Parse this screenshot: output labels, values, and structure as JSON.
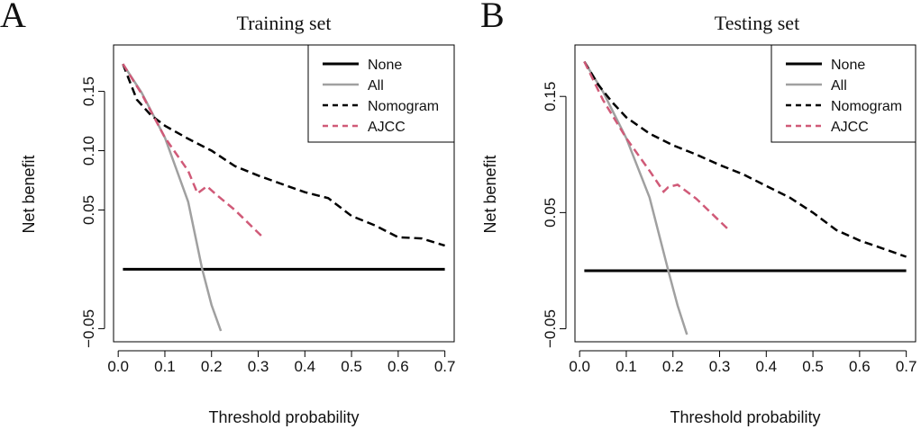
{
  "figure": {
    "colors": {
      "None": "#000000",
      "All": "#a0a0a0",
      "Nomogram": "#000000",
      "AJCC": "#d05a78"
    }
  },
  "chart_data": [
    {
      "type": "line",
      "panel_label": "A",
      "title": "Training set",
      "xlabel": "Threshold probability",
      "ylabel": "Net benefit",
      "xlim": [
        -0.01,
        0.72
      ],
      "ylim": [
        -0.055,
        0.18
      ],
      "xticks": [
        0.0,
        0.1,
        0.2,
        0.3,
        0.4,
        0.5,
        0.6,
        0.7
      ],
      "xtick_labels": [
        "0.0",
        "0.1",
        "0.2",
        "0.3",
        "0.4",
        "0.5",
        "0.6",
        "0.7"
      ],
      "yticks": [
        -0.05,
        0.05,
        0.1,
        0.15
      ],
      "ytick_labels": [
        "−0.05",
        "0.05",
        "0.10",
        "0.15"
      ],
      "grid": false,
      "legend": {
        "position": "top-right",
        "entries": [
          "None",
          "All",
          "Nomogram",
          "AJCC"
        ]
      },
      "series": [
        {
          "name": "None",
          "style": "solid",
          "points": [
            [
              0.01,
              0.0
            ],
            [
              0.7,
              0.0
            ]
          ]
        },
        {
          "name": "All",
          "style": "solid",
          "points": [
            [
              0.01,
              0.173
            ],
            [
              0.05,
              0.149
            ],
            [
              0.1,
              0.111
            ],
            [
              0.15,
              0.057
            ],
            [
              0.18,
              0.0
            ],
            [
              0.2,
              -0.03
            ],
            [
              0.22,
              -0.052
            ]
          ]
        },
        {
          "name": "Nomogram",
          "style": "dashed",
          "points": [
            [
              0.01,
              0.173
            ],
            [
              0.04,
              0.143
            ],
            [
              0.07,
              0.13
            ],
            [
              0.1,
              0.121
            ],
            [
              0.15,
              0.11
            ],
            [
              0.2,
              0.1
            ],
            [
              0.25,
              0.087
            ],
            [
              0.3,
              0.079
            ],
            [
              0.35,
              0.072
            ],
            [
              0.4,
              0.065
            ],
            [
              0.45,
              0.06
            ],
            [
              0.5,
              0.045
            ],
            [
              0.55,
              0.037
            ],
            [
              0.6,
              0.027
            ],
            [
              0.65,
              0.026
            ],
            [
              0.7,
              0.02
            ]
          ]
        },
        {
          "name": "AJCC",
          "style": "dashed",
          "points": [
            [
              0.01,
              0.173
            ],
            [
              0.05,
              0.148
            ],
            [
              0.1,
              0.111
            ],
            [
              0.15,
              0.083
            ],
            [
              0.17,
              0.064
            ],
            [
              0.19,
              0.07
            ],
            [
              0.21,
              0.063
            ],
            [
              0.25,
              0.05
            ],
            [
              0.31,
              0.027
            ]
          ]
        }
      ]
    },
    {
      "type": "line",
      "panel_label": "B",
      "title": "Testing set",
      "xlabel": "Threshold probability",
      "ylabel": "Net benefit",
      "xlim": [
        -0.01,
        0.72
      ],
      "ylim": [
        -0.055,
        0.185
      ],
      "xticks": [
        0.0,
        0.1,
        0.2,
        0.3,
        0.4,
        0.5,
        0.6,
        0.7
      ],
      "xtick_labels": [
        "0.0",
        "0.1",
        "0.2",
        "0.3",
        "0.4",
        "0.5",
        "0.6",
        "0.7"
      ],
      "yticks": [
        -0.05,
        0.05,
        0.15
      ],
      "ytick_labels": [
        "−0.05",
        "0.05",
        "0.15"
      ],
      "grid": false,
      "legend": {
        "position": "top-right",
        "entries": [
          "None",
          "All",
          "Nomogram",
          "AJCC"
        ]
      },
      "series": [
        {
          "name": "None",
          "style": "solid",
          "points": [
            [
              0.01,
              0.0
            ],
            [
              0.7,
              0.0
            ]
          ]
        },
        {
          "name": "All",
          "style": "solid",
          "points": [
            [
              0.01,
              0.18
            ],
            [
              0.05,
              0.154
            ],
            [
              0.1,
              0.114
            ],
            [
              0.15,
              0.063
            ],
            [
              0.19,
              0.0
            ],
            [
              0.21,
              -0.03
            ],
            [
              0.23,
              -0.055
            ]
          ]
        },
        {
          "name": "Nomogram",
          "style": "dashed",
          "points": [
            [
              0.01,
              0.18
            ],
            [
              0.04,
              0.16
            ],
            [
              0.07,
              0.145
            ],
            [
              0.1,
              0.132
            ],
            [
              0.15,
              0.118
            ],
            [
              0.2,
              0.108
            ],
            [
              0.25,
              0.1
            ],
            [
              0.3,
              0.091
            ],
            [
              0.35,
              0.083
            ],
            [
              0.4,
              0.073
            ],
            [
              0.45,
              0.063
            ],
            [
              0.5,
              0.05
            ],
            [
              0.55,
              0.035
            ],
            [
              0.6,
              0.026
            ],
            [
              0.65,
              0.019
            ],
            [
              0.7,
              0.012
            ]
          ]
        },
        {
          "name": "AJCC",
          "style": "dashed",
          "points": [
            [
              0.01,
              0.18
            ],
            [
              0.05,
              0.147
            ],
            [
              0.1,
              0.114
            ],
            [
              0.15,
              0.086
            ],
            [
              0.18,
              0.068
            ],
            [
              0.19,
              0.072
            ],
            [
              0.21,
              0.074
            ],
            [
              0.25,
              0.062
            ],
            [
              0.32,
              0.035
            ]
          ]
        }
      ]
    }
  ]
}
